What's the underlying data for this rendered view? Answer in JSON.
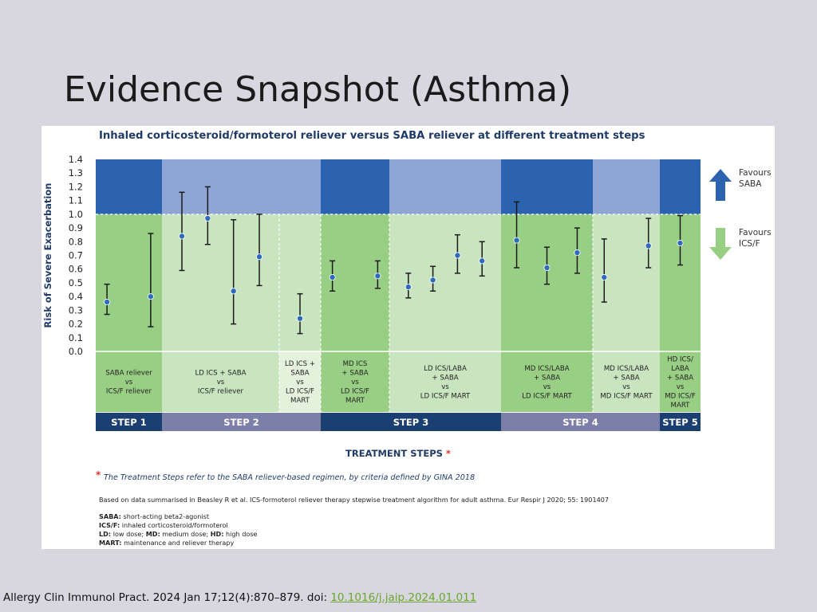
{
  "slide": {
    "title": "Evidence Snapshot (Asthma)",
    "citation_text": "Allergy Clin Immunol Pract. 2024 Jan 17;12(4):870–879. doi: ",
    "doi_link": "10.1016/j.jaip.2024.01.011"
  },
  "colors": {
    "favours_saba_band": "#2c63b0",
    "favours_saba_band_light": "#8fa5d6",
    "favours_icsf_band": "#99cf84",
    "favours_icsf_band_light": "#c9e5bf",
    "step_bar_dark": "#1c3f72",
    "step_bar_light": "#7c7fa8",
    "point": "#2f6bbd",
    "arrow_up": "#2c63b0",
    "arrow_down": "#99cf84",
    "asterisk": "#e0312c",
    "link": "#6aa62f"
  },
  "legend": {
    "favours_saba": [
      "Favours",
      "SABA"
    ],
    "favours_icsf": [
      "Favours",
      "ICS/F"
    ]
  },
  "notes": {
    "treatment_steps_label": "TREATMENT STEPS",
    "asterisk": "*",
    "steps_footnote": "The Treatment Steps refer to the SABA reliever-based regimen, by criteria defined by GINA 2018",
    "source": "Based on data summarised in Beasley R et al. ICS-formoterol reliever therapy stepwise treatment algorithm for adult asthma. Eur Respir J 2020; 55: 1901407",
    "abbreviations": [
      {
        "term": "SABA:",
        "def": " short-acting beta2-agonist"
      },
      {
        "term": "ICS/F:",
        "def": " inhaled corticosteroid/formoterol"
      },
      {
        "term": "LD:",
        "def": " low dose; ",
        "term2": "MD:",
        "def2": " medium dose; ",
        "term3": "HD:",
        "def3": " high dose"
      },
      {
        "term": "MART:",
        "def": " maintenance and reliever therapy"
      }
    ]
  },
  "chart_data": {
    "type": "scatter",
    "subtype": "forest_plot_with_error_bars",
    "title": "Inhaled corticosteroid/formoterol reliever versus SABA reliever at different treatment steps",
    "ylabel": "Risk of Severe Exacerbation",
    "xlabel": "TREATMENT STEPS",
    "ylim": [
      0.0,
      1.4
    ],
    "yticks": [
      "0.0",
      "0.1",
      "0.2",
      "0.3",
      "0.4",
      "0.5",
      "0.6",
      "0.7",
      "0.8",
      "0.9",
      "1.0",
      "1.1",
      "1.2",
      "1.3",
      "1.4"
    ],
    "reference_line": 1.0,
    "comparison_groups": [
      {
        "label": [
          "SABA reliever",
          "vs",
          "ICS/F reliever"
        ],
        "step": "STEP 1",
        "shade": "dark",
        "points": [
          {
            "estimate": 0.36,
            "lower": 0.27,
            "upper": 0.49
          },
          {
            "estimate": 0.4,
            "lower": 0.18,
            "upper": 0.86
          }
        ]
      },
      {
        "label": [
          "LD ICS + SABA",
          "vs",
          "ICS/F reliever"
        ],
        "step": "STEP 2",
        "shade": "light",
        "points": [
          {
            "estimate": 0.84,
            "lower": 0.59,
            "upper": 1.16
          },
          {
            "estimate": 0.97,
            "lower": 0.78,
            "upper": 1.2
          },
          {
            "estimate": 0.44,
            "lower": 0.2,
            "upper": 0.96
          },
          {
            "estimate": 0.69,
            "lower": 0.48,
            "upper": 1.0
          }
        ]
      },
      {
        "label": [
          "LD ICS +",
          "SABA",
          "vs",
          "LD ICS/F",
          "MART"
        ],
        "step": "STEP 2",
        "shade": "lighter",
        "points": [
          {
            "estimate": 0.24,
            "lower": 0.13,
            "upper": 0.42
          }
        ]
      },
      {
        "label": [
          "MD ICS",
          "+ SABA",
          "vs",
          "LD ICS/F",
          "MART"
        ],
        "step": "STEP 3",
        "shade": "dark",
        "points": [
          {
            "estimate": 0.54,
            "lower": 0.44,
            "upper": 0.66
          },
          {
            "estimate": 0.55,
            "lower": 0.46,
            "upper": 0.66
          }
        ]
      },
      {
        "label": [
          "LD ICS/LABA",
          "+ SABA",
          "vs",
          "LD ICS/F MART"
        ],
        "step": "STEP 3",
        "shade": "light",
        "points": [
          {
            "estimate": 0.47,
            "lower": 0.39,
            "upper": 0.57
          },
          {
            "estimate": 0.52,
            "lower": 0.44,
            "upper": 0.62
          },
          {
            "estimate": 0.7,
            "lower": 0.57,
            "upper": 0.85
          },
          {
            "estimate": 0.66,
            "lower": 0.55,
            "upper": 0.8
          }
        ]
      },
      {
        "label": [
          "MD ICS/LABA",
          "+ SABA",
          "vs",
          "LD ICS/F MART"
        ],
        "step": "STEP 4",
        "shade": "dark",
        "points": [
          {
            "estimate": 0.81,
            "lower": 0.61,
            "upper": 1.09
          },
          {
            "estimate": 0.61,
            "lower": 0.49,
            "upper": 0.76
          },
          {
            "estimate": 0.72,
            "lower": 0.57,
            "upper": 0.9
          }
        ]
      },
      {
        "label": [
          "MD ICS/LABA",
          "+ SABA",
          "vs",
          "MD ICS/F MART"
        ],
        "step": "STEP 4",
        "shade": "light",
        "points": [
          {
            "estimate": 0.54,
            "lower": 0.36,
            "upper": 0.82
          },
          {
            "estimate": 0.77,
            "lower": 0.61,
            "upper": 0.97
          }
        ]
      },
      {
        "label": [
          "HD ICS/",
          "LABA",
          "+ SABA",
          "vs",
          "MD ICS/F",
          "MART"
        ],
        "step": "STEP 5",
        "shade": "dark",
        "points": [
          {
            "estimate": 0.79,
            "lower": 0.63,
            "upper": 0.99
          }
        ]
      }
    ],
    "steps": [
      {
        "label": "STEP 1",
        "shade": "dark"
      },
      {
        "label": "STEP 2",
        "shade": "light"
      },
      {
        "label": "STEP 3",
        "shade": "dark"
      },
      {
        "label": "STEP 4",
        "shade": "light"
      },
      {
        "label": "STEP 5",
        "shade": "dark"
      }
    ]
  }
}
